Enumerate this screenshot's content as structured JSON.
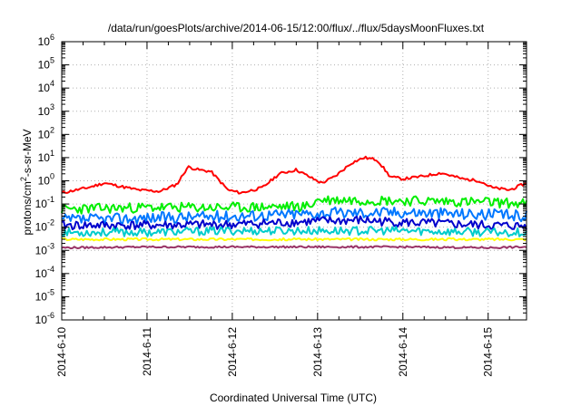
{
  "chart_data": {
    "type": "line",
    "title": "/data/run/goesPlots/archive/2014-06-15/12:00/flux/../flux/5daysMoonFluxes.txt",
    "xlabel": "Coordinated Universal Time (UTC)",
    "ylabel": {
      "pre": "protons/cm",
      "sup": "2",
      "post": "-s-sr-MeV"
    },
    "x_ticks": [
      "2014-6-10",
      "2014-6-11",
      "2014-6-12",
      "2014-6-13",
      "2014-6-14",
      "2014-6-15"
    ],
    "x_range_days": [
      0,
      5.45
    ],
    "y_scale": "log",
    "y_ticks": [
      {
        "base": "10",
        "exp": "6"
      },
      {
        "base": "10",
        "exp": "5"
      },
      {
        "base": "10",
        "exp": "4"
      },
      {
        "base": "10",
        "exp": "3"
      },
      {
        "base": "10",
        "exp": "2"
      },
      {
        "base": "10",
        "exp": "1"
      },
      {
        "base": "10",
        "exp": "0"
      },
      {
        "base": "10",
        "exp": "-1"
      },
      {
        "base": "10",
        "exp": "-2"
      },
      {
        "base": "10",
        "exp": "-3"
      },
      {
        "base": "10",
        "exp": "-4"
      },
      {
        "base": "10",
        "exp": "-5"
      },
      {
        "base": "10",
        "exp": "-6"
      }
    ],
    "ylim_exp": [
      -6,
      6
    ],
    "grid": true,
    "series": [
      {
        "color": "#ff0000",
        "x": [
          0,
          0.3,
          0.5,
          0.9,
          1.15,
          1.35,
          1.48,
          1.6,
          1.75,
          1.95,
          2.1,
          2.35,
          2.55,
          2.75,
          2.95,
          3.05,
          3.2,
          3.4,
          3.55,
          3.7,
          3.85,
          4.0,
          4.2,
          4.45,
          4.7,
          4.9,
          5.05,
          5.25,
          5.45
        ],
        "y": [
          0.3,
          0.5,
          0.8,
          0.4,
          0.35,
          0.7,
          4,
          3,
          2.5,
          0.4,
          0.3,
          0.5,
          2,
          3,
          1.2,
          0.8,
          1.5,
          6,
          10,
          8,
          1.5,
          1.2,
          1.5,
          2.2,
          1.2,
          1.0,
          0.5,
          0.4,
          0.8
        ]
      },
      {
        "color": "#00ee00",
        "x": [
          0,
          1,
          2,
          2.9,
          3.0,
          3.3,
          4,
          5,
          5.45
        ],
        "y": [
          0.06,
          0.07,
          0.07,
          0.08,
          0.15,
          0.15,
          0.14,
          0.12,
          0.1
        ]
      },
      {
        "color": "#0077ff",
        "x": [
          0,
          1,
          2,
          3,
          4,
          5,
          5.45
        ],
        "y": [
          0.02,
          0.025,
          0.03,
          0.04,
          0.045,
          0.035,
          0.03
        ]
      },
      {
        "color": "#0000cc",
        "x": [
          0,
          1,
          2,
          3,
          3.5,
          4,
          5,
          5.45
        ],
        "y": [
          0.012,
          0.012,
          0.013,
          0.018,
          0.02,
          0.016,
          0.012,
          0.011
        ]
      },
      {
        "color": "#00cccc",
        "x": [
          0,
          1,
          2,
          3,
          4,
          5,
          5.45
        ],
        "y": [
          0.006,
          0.006,
          0.007,
          0.007,
          0.007,
          0.006,
          0.006
        ]
      },
      {
        "color": "#ffff00",
        "x": [
          0,
          1,
          2,
          3,
          4,
          5,
          5.45
        ],
        "y": [
          0.003,
          0.003,
          0.003,
          0.003,
          0.003,
          0.003,
          0.003
        ]
      },
      {
        "color": "#993366",
        "x": [
          0,
          1,
          2,
          3,
          4,
          5,
          5.45
        ],
        "y": [
          0.0013,
          0.0014,
          0.0014,
          0.0014,
          0.0014,
          0.0013,
          0.0014
        ]
      }
    ]
  }
}
